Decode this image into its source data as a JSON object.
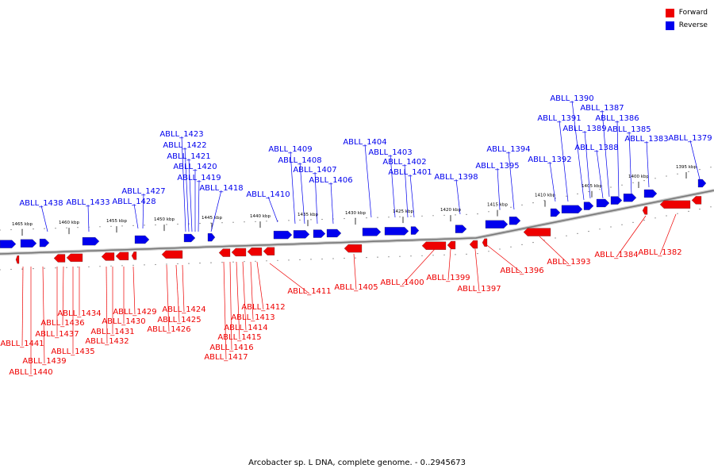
{
  "legend": {
    "forward_label": "Forward",
    "reverse_label": "Reverse",
    "forward_color": "#ee0000",
    "reverse_color": "#0000ee"
  },
  "caption": "Arcobacter sp. L DNA, complete genome. - 0..2945673",
  "axis_labels": [
    "1465 kbp",
    "1460 kbp",
    "1455 kbp",
    "1450 kbp",
    "1445 kbp",
    "1440 kbp",
    "1435 kbp",
    "1430 kbp",
    "1425 kbp",
    "1420 kbp",
    "1415 kbp",
    "1410 kbp",
    "1405 kbp",
    "1400 kbp",
    "1395 kbp"
  ],
  "forward_genes": [
    "ABLL_1441",
    "ABLL_1440",
    "ABLL_1439",
    "ABLL_1437",
    "ABLL_1436",
    "ABLL_1435",
    "ABLL_1434",
    "ABLL_1432",
    "ABLL_1431",
    "ABLL_1430",
    "ABLL_1429",
    "ABLL_1426",
    "ABLL_1425",
    "ABLL_1424",
    "ABLL_1417",
    "ABLL_1416",
    "ABLL_1415",
    "ABLL_1414",
    "ABLL_1413",
    "ABLL_1412",
    "ABLL_1411",
    "ABLL_1405",
    "ABLL_1400",
    "ABLL_1399",
    "ABLL_1397",
    "ABLL_1396",
    "ABLL_1393",
    "ABLL_1384",
    "ABLL_1382"
  ],
  "reverse_genes": [
    "ABLL_1438",
    "ABLL_1433",
    "ABLL_1428",
    "ABLL_1427",
    "ABLL_1423",
    "ABLL_1422",
    "ABLL_1421",
    "ABLL_1420",
    "ABLL_1419",
    "ABLL_1418",
    "ABLL_1410",
    "ABLL_1409",
    "ABLL_1408",
    "ABLL_1407",
    "ABLL_1406",
    "ABLL_1404",
    "ABLL_1403",
    "ABLL_1402",
    "ABLL_1401",
    "ABLL_1398",
    "ABLL_1395",
    "ABLL_1394",
    "ABLL_1392",
    "ABLL_1391",
    "ABLL_1390",
    "ABLL_1389",
    "ABLL_1388",
    "ABLL_1387",
    "ABLL_1386",
    "ABLL_1385",
    "ABLL_1383",
    "ABLL_1379"
  ]
}
